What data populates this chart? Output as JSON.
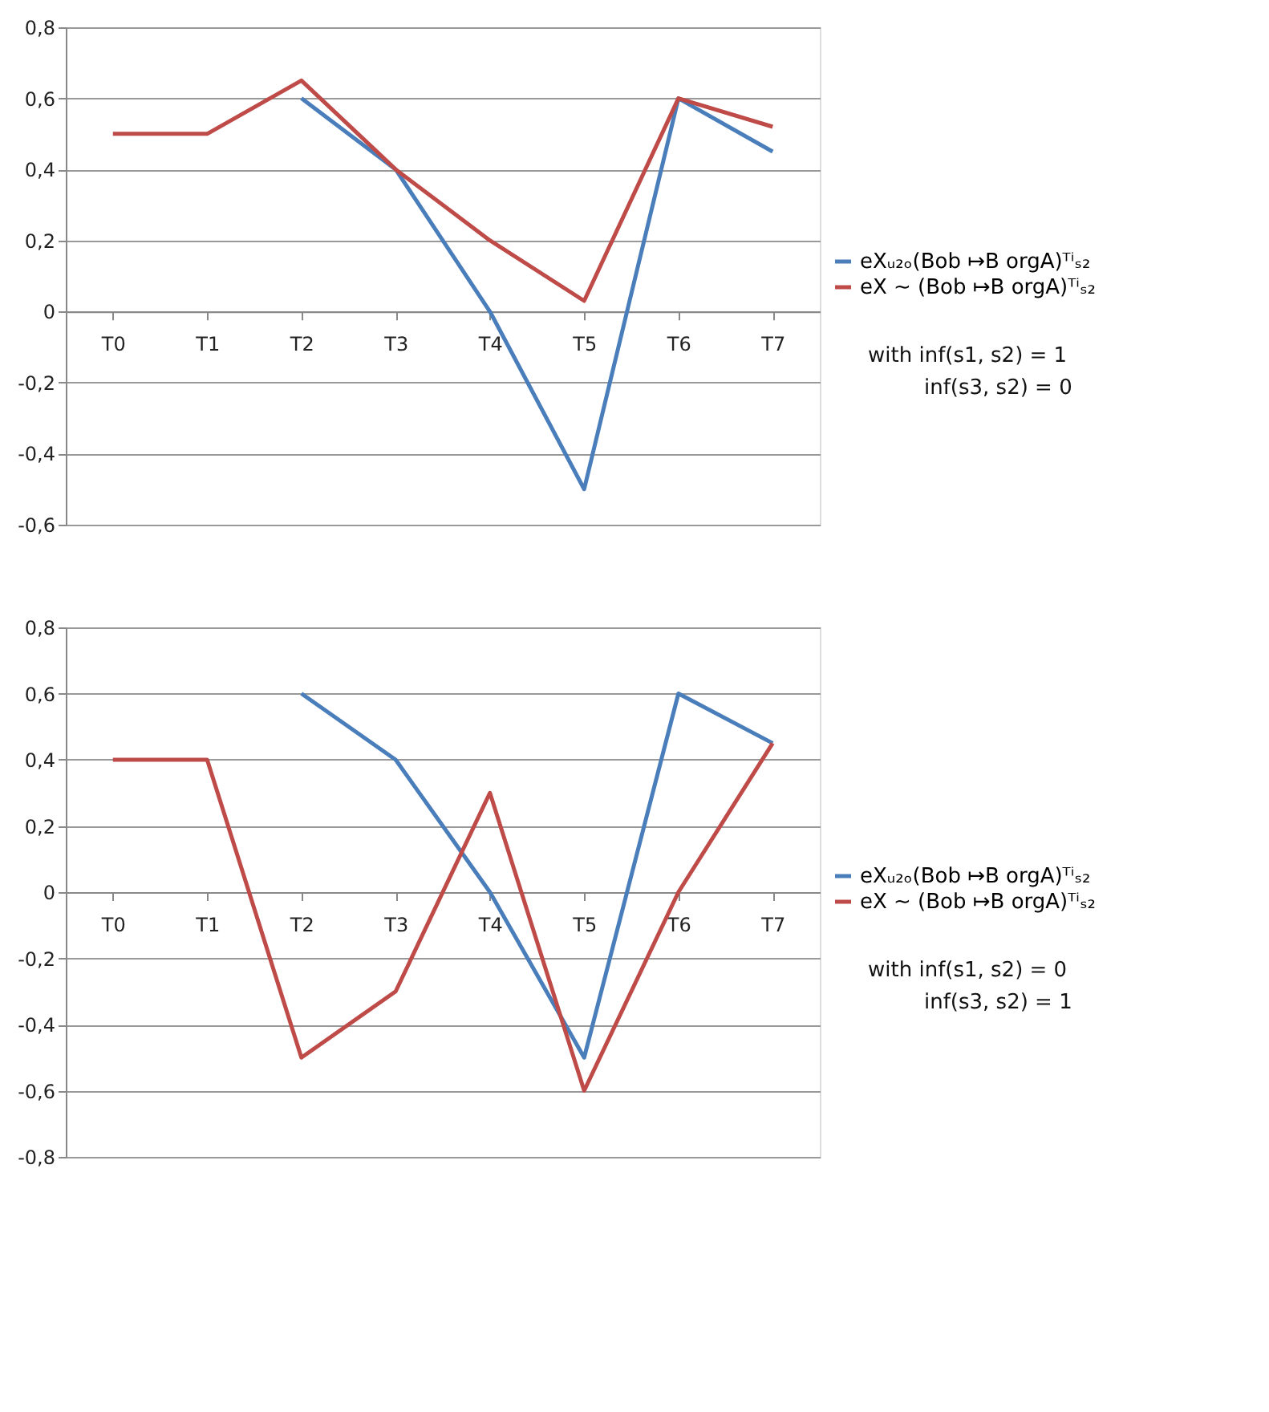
{
  "chart_data": [
    {
      "type": "line",
      "categories": [
        "T0",
        "T1",
        "T2",
        "T3",
        "T4",
        "T5",
        "T6",
        "T7"
      ],
      "ylim": [
        -0.6,
        0.8
      ],
      "yticks": [
        {
          "value": -0.6,
          "label": "-0,6"
        },
        {
          "value": -0.4,
          "label": "-0,4"
        },
        {
          "value": -0.2,
          "label": "-0,2"
        },
        0,
        {
          "value": 0.2,
          "label": "0,2"
        },
        {
          "value": 0.4,
          "label": "0,4"
        },
        {
          "value": 0.6,
          "label": "0,6"
        },
        {
          "value": 0.8,
          "label": "0,8"
        }
      ],
      "grid": "y",
      "legend": "right",
      "line_style": "solid",
      "marker": "none",
      "series": [
        {
          "name": "eXᵤ₂ₒ(Bob ↦B orgA)ᵀⁱₛ₂",
          "color": "#4a7ebb",
          "values": [
            null,
            null,
            0.6,
            0.4,
            0.0,
            -0.5,
            0.6,
            0.45
          ]
        },
        {
          "name": "eX ∼ (Bob ↦B orgA)ᵀⁱₛ₂",
          "color": "#be4b48",
          "values": [
            0.5,
            0.5,
            0.65,
            0.4,
            0.2,
            0.03,
            0.6,
            0.52
          ]
        }
      ],
      "annotations": [
        "with inf(s1, s2) = 1",
        "inf(s3, s2) = 0"
      ]
    },
    {
      "type": "line",
      "categories": [
        "T0",
        "T1",
        "T2",
        "T3",
        "T4",
        "T5",
        "T6",
        "T7"
      ],
      "ylim": [
        -0.8,
        0.8
      ],
      "yticks": [
        {
          "value": -0.8,
          "label": "-0,8"
        },
        {
          "value": -0.6,
          "label": "-0,6"
        },
        {
          "value": -0.4,
          "label": "-0,4"
        },
        {
          "value": -0.2,
          "label": "-0,2"
        },
        0,
        {
          "value": 0.2,
          "label": "0,2"
        },
        {
          "value": 0.4,
          "label": "0,4"
        },
        {
          "value": 0.6,
          "label": "0,6"
        },
        {
          "value": 0.8,
          "label": "0,8"
        }
      ],
      "grid": "y",
      "legend": "right",
      "line_style": "solid",
      "marker": "none",
      "series": [
        {
          "name": "eXᵤ₂ₒ(Bob ↦B orgA)ᵀⁱₛ₂",
          "color": "#4a7ebb",
          "values": [
            null,
            null,
            0.6,
            0.4,
            0.0,
            -0.5,
            0.6,
            0.45
          ]
        },
        {
          "name": "eX ∼ (Bob ↦B orgA)ᵀⁱₛ₂",
          "color": "#be4b48",
          "values": [
            0.4,
            0.4,
            -0.5,
            -0.3,
            0.3,
            -0.6,
            0.0,
            0.45
          ]
        }
      ],
      "annotations": [
        "with inf(s1, s2) = 0",
        "inf(s3, s2) = 1"
      ]
    }
  ]
}
